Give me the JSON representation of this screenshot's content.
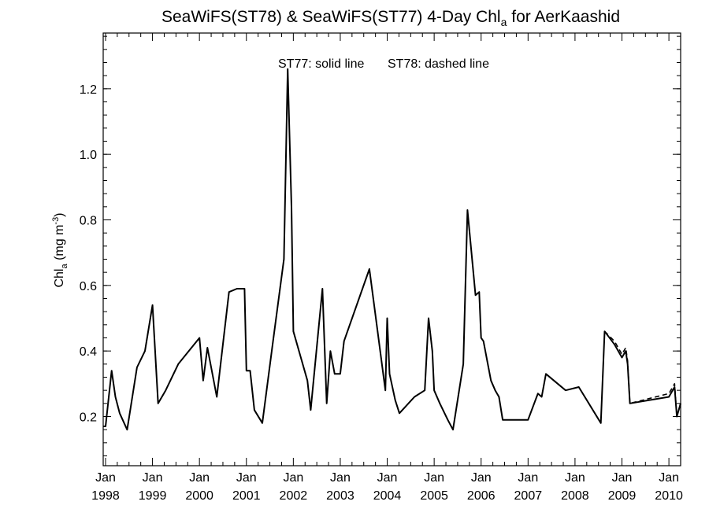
{
  "chart_data": {
    "type": "line",
    "title": {
      "text_before": "SeaWiFS(ST78) & SeaWiFS(ST77) 4-Day Chl",
      "subscript": "a",
      "text_after": " for AerKaashid"
    },
    "annotation": {
      "solid": "ST77: solid line",
      "dashed": "ST78: dashed line"
    },
    "ylabel": {
      "text": "Chl",
      "subscript": "a",
      "unit_open": " (mg m",
      "unit_sup": "-3",
      "unit_close": ")"
    },
    "xlabel": "",
    "x_units": "decimal year",
    "xlim": [
      1997.95,
      2010.25
    ],
    "ylim": [
      0.05,
      1.37
    ],
    "yticks": [
      {
        "value": 0.2,
        "label": "0.2"
      },
      {
        "value": 0.4,
        "label": "0.4"
      },
      {
        "value": 0.6,
        "label": "0.6"
      },
      {
        "value": 0.8,
        "label": "0.8"
      },
      {
        "value": 1.0,
        "label": "1.0"
      },
      {
        "value": 1.2,
        "label": "1.2"
      }
    ],
    "xticks": [
      {
        "value": 1998,
        "month": "Jan",
        "year": "1998"
      },
      {
        "value": 1999,
        "month": "Jan",
        "year": "1999"
      },
      {
        "value": 2000,
        "month": "Jan",
        "year": "2000"
      },
      {
        "value": 2001,
        "month": "Jan",
        "year": "2001"
      },
      {
        "value": 2002,
        "month": "Jan",
        "year": "2002"
      },
      {
        "value": 2003,
        "month": "Jan",
        "year": "2003"
      },
      {
        "value": 2004,
        "month": "Jan",
        "year": "2004"
      },
      {
        "value": 2005,
        "month": "Jan",
        "year": "2005"
      },
      {
        "value": 2006,
        "month": "Jan",
        "year": "2006"
      },
      {
        "value": 2007,
        "month": "Jan",
        "year": "2007"
      },
      {
        "value": 2008,
        "month": "Jan",
        "year": "2008"
      },
      {
        "value": 2009,
        "month": "Jan",
        "year": "2009"
      },
      {
        "value": 2010,
        "month": "Jan",
        "year": "2010"
      }
    ],
    "grid": false,
    "series": [
      {
        "name": "ST77",
        "style": "solid",
        "color": "#000000",
        "points": [
          [
            1997.95,
            0.17
          ],
          [
            1998.0,
            0.17
          ],
          [
            1998.13,
            0.34
          ],
          [
            1998.21,
            0.26
          ],
          [
            1998.3,
            0.21
          ],
          [
            1998.46,
            0.16
          ],
          [
            1998.67,
            0.35
          ],
          [
            1998.84,
            0.4
          ],
          [
            1999.0,
            0.54
          ],
          [
            1999.12,
            0.24
          ],
          [
            1999.28,
            0.28
          ],
          [
            1999.55,
            0.36
          ],
          [
            2000.0,
            0.44
          ],
          [
            2000.08,
            0.31
          ],
          [
            2000.17,
            0.41
          ],
          [
            2000.37,
            0.26
          ],
          [
            2000.63,
            0.58
          ],
          [
            2000.8,
            0.59
          ],
          [
            2000.96,
            0.59
          ],
          [
            2001.0,
            0.34
          ],
          [
            2001.08,
            0.34
          ],
          [
            2001.17,
            0.22
          ],
          [
            2001.34,
            0.18
          ],
          [
            2001.55,
            0.41
          ],
          [
            2001.8,
            0.68
          ],
          [
            2001.88,
            1.26
          ],
          [
            2001.96,
            0.84
          ],
          [
            2002.0,
            0.46
          ],
          [
            2002.3,
            0.31
          ],
          [
            2002.37,
            0.22
          ],
          [
            2002.62,
            0.59
          ],
          [
            2002.71,
            0.24
          ],
          [
            2002.79,
            0.4
          ],
          [
            2002.88,
            0.33
          ],
          [
            2003.0,
            0.33
          ],
          [
            2003.08,
            0.43
          ],
          [
            2003.62,
            0.65
          ],
          [
            2003.96,
            0.28
          ],
          [
            2004.0,
            0.5
          ],
          [
            2004.05,
            0.33
          ],
          [
            2004.17,
            0.25
          ],
          [
            2004.26,
            0.21
          ],
          [
            2004.58,
            0.26
          ],
          [
            2004.8,
            0.28
          ],
          [
            2004.88,
            0.5
          ],
          [
            2004.96,
            0.4
          ],
          [
            2005.0,
            0.28
          ],
          [
            2005.12,
            0.24
          ],
          [
            2005.29,
            0.19
          ],
          [
            2005.4,
            0.16
          ],
          [
            2005.62,
            0.36
          ],
          [
            2005.71,
            0.83
          ],
          [
            2005.88,
            0.57
          ],
          [
            2005.96,
            0.58
          ],
          [
            2006.0,
            0.44
          ],
          [
            2006.05,
            0.43
          ],
          [
            2006.21,
            0.31
          ],
          [
            2006.3,
            0.28
          ],
          [
            2006.38,
            0.26
          ],
          [
            2006.46,
            0.19
          ],
          [
            2007.0,
            0.19
          ],
          [
            2007.21,
            0.27
          ],
          [
            2007.29,
            0.26
          ],
          [
            2007.38,
            0.33
          ],
          [
            2007.8,
            0.28
          ],
          [
            2008.08,
            0.29
          ],
          [
            2008.55,
            0.18
          ],
          [
            2008.63,
            0.46
          ],
          [
            2008.84,
            0.42
          ],
          [
            2009.0,
            0.38
          ],
          [
            2009.08,
            0.4
          ],
          [
            2009.12,
            0.36
          ],
          [
            2009.17,
            0.24
          ],
          [
            2010.0,
            0.26
          ],
          [
            2010.12,
            0.29
          ],
          [
            2010.17,
            0.2
          ],
          [
            2010.25,
            0.24
          ]
        ]
      },
      {
        "name": "ST78",
        "style": "dashed",
        "color": "#000000",
        "points": [
          [
            2008.63,
            0.46
          ],
          [
            2008.84,
            0.43
          ],
          [
            2009.0,
            0.39
          ],
          [
            2009.08,
            0.41
          ],
          [
            2009.12,
            0.37
          ],
          [
            2009.17,
            0.24
          ],
          [
            2010.0,
            0.27
          ],
          [
            2010.12,
            0.3
          ],
          [
            2010.17,
            0.2
          ],
          [
            2010.25,
            0.24
          ]
        ]
      }
    ]
  }
}
